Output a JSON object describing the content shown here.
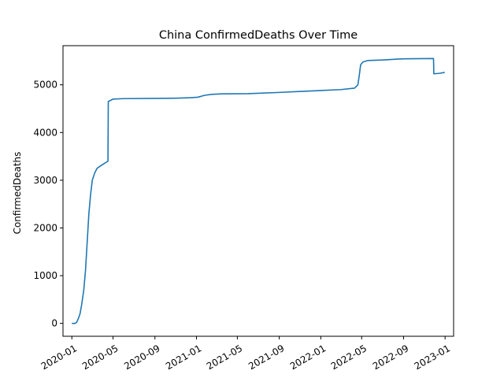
{
  "chart_data": {
    "type": "line",
    "title": "China  ConfirmedDeaths Over Time",
    "xlabel": "",
    "ylabel": "ConfirmedDeaths",
    "xlim": [
      "2019-12-06",
      "2023-01-26"
    ],
    "ylim": [
      -270,
      5820
    ],
    "grid": false,
    "legend": "none",
    "x_tick_labels": [
      "2020-01",
      "2020-05",
      "2020-09",
      "2021-01",
      "2021-05",
      "2021-09",
      "2022-01",
      "2022-05",
      "2022-09",
      "2023-01"
    ],
    "y_ticks": [
      0,
      1000,
      2000,
      3000,
      4000,
      5000
    ],
    "y_tick_labels": [
      "0",
      "1000",
      "2000",
      "3000",
      "4000",
      "5000"
    ],
    "series": [
      {
        "color": "#1f77b4",
        "x": [
          "2020-01-01",
          "2020-01-10",
          "2020-01-15",
          "2020-01-20",
          "2020-01-25",
          "2020-01-30",
          "2020-02-05",
          "2020-02-10",
          "2020-02-15",
          "2020-02-20",
          "2020-02-25",
          "2020-03-01",
          "2020-03-08",
          "2020-03-15",
          "2020-03-25",
          "2020-04-05",
          "2020-04-16",
          "2020-04-17",
          "2020-05-01",
          "2020-06-01",
          "2020-09-01",
          "2020-11-01",
          "2020-12-15",
          "2021-01-05",
          "2021-01-25",
          "2021-02-15",
          "2021-03-15",
          "2021-06-01",
          "2021-09-01",
          "2021-12-01",
          "2022-01-01",
          "2022-03-01",
          "2022-04-10",
          "2022-04-20",
          "2022-04-25",
          "2022-04-28",
          "2022-05-05",
          "2022-05-20",
          "2022-07-01",
          "2022-09-01",
          "2022-11-28",
          "2022-11-29",
          "2022-12-15",
          "2022-12-31"
        ],
        "y": [
          0,
          0,
          20,
          100,
          200,
          400,
          700,
          1100,
          1700,
          2300,
          2700,
          3000,
          3150,
          3250,
          3300,
          3350,
          3400,
          4650,
          4700,
          4710,
          4715,
          4720,
          4730,
          4740,
          4780,
          4800,
          4810,
          4815,
          4840,
          4870,
          4880,
          4900,
          4930,
          5000,
          5250,
          5420,
          5480,
          5510,
          5520,
          5545,
          5550,
          5230,
          5240,
          5260
        ]
      }
    ]
  }
}
